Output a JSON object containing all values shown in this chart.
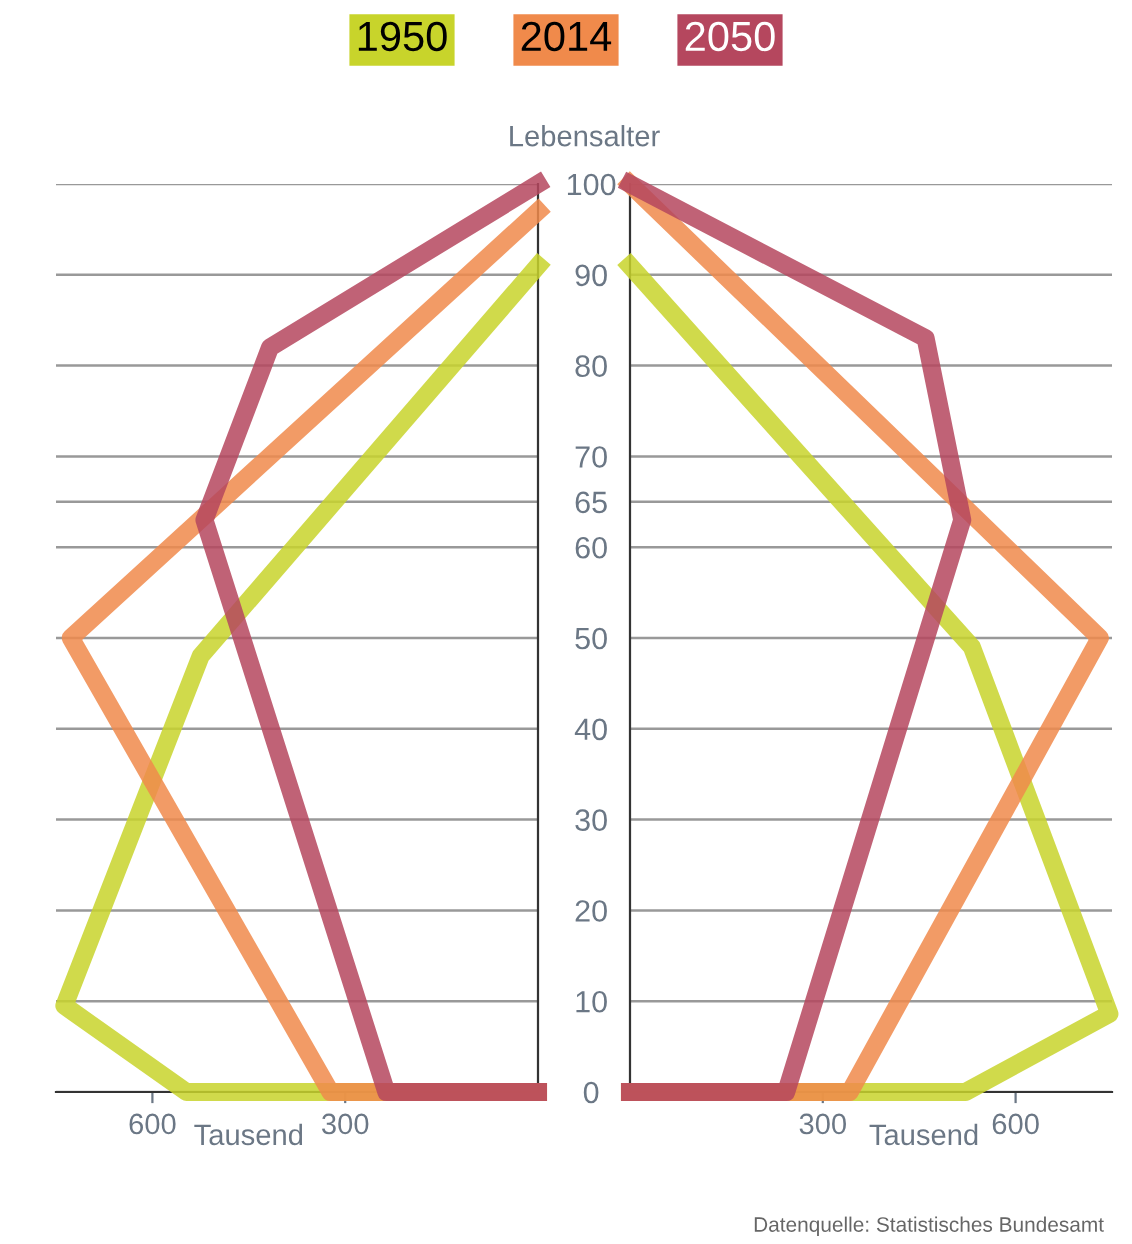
{
  "chart_data": [
    {
      "type": "line",
      "legend": "top",
      "xlabel": "Tausend",
      "xlim": [
        750,
        0
      ],
      "xticks": [
        600,
        300
      ],
      "ylim": [
        0,
        100
      ],
      "yticks": [
        0,
        10,
        20,
        30,
        40,
        50,
        60,
        65,
        70,
        80,
        90,
        100
      ],
      "tick_labels": "x",
      "grid": "y",
      "marker": "none",
      "line_style": "solid",
      "series": [
        {
          "name": "1950",
          "color": "#c8d42b",
          "x": [
            0,
            547,
            737,
            525,
            0
          ],
          "values": [
            0,
            0,
            9.5,
            48,
            91
          ]
        },
        {
          "name": "2014",
          "color": "#f08a4b",
          "x": [
            0,
            323,
            727,
            0
          ],
          "values": [
            0,
            0,
            50,
            97
          ]
        },
        {
          "name": "2050",
          "color": "#b5475e",
          "x": [
            0,
            236,
            519,
            417,
            0
          ],
          "values": [
            0,
            0,
            63,
            82,
            100
          ]
        }
      ]
    },
    {
      "type": "line",
      "xlabel": "Tausend",
      "ylabel": "Lebensalter",
      "xlim": [
        0,
        750
      ],
      "xticks": [
        300,
        600
      ],
      "ylim": [
        0,
        100
      ],
      "yticks": [
        0,
        10,
        20,
        30,
        40,
        50,
        60,
        65,
        70,
        80,
        90,
        100
      ],
      "grid": "y",
      "marker": "none",
      "line_style": "solid",
      "annotations": [
        "Datenquelle: Statistisches Bundesamt"
      ],
      "series": [
        {
          "color": "#c8d42b",
          "x": [
            0,
            522,
            746,
            532,
            0
          ],
          "values": [
            0,
            0,
            8.6,
            49,
            91
          ]
        },
        {
          "color": "#f08a4b",
          "x": [
            0,
            342,
            731,
            0
          ],
          "values": [
            0,
            0,
            50,
            100
          ]
        },
        {
          "color": "#b5475e",
          "x": [
            0,
            243,
            517,
            460,
            0
          ],
          "values": [
            0,
            0,
            63,
            83,
            100
          ]
        }
      ]
    }
  ]
}
